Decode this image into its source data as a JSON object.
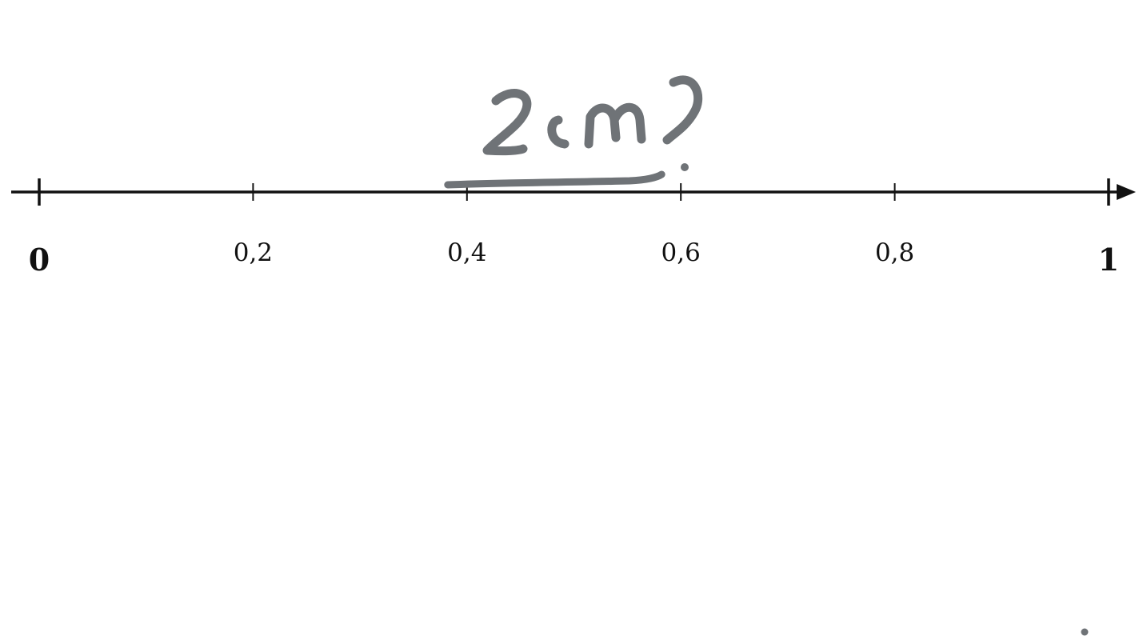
{
  "number_line": {
    "ticks": [
      {
        "value": 0,
        "label": "0",
        "major": true
      },
      {
        "value": 0.2,
        "label": "0,2",
        "major": false
      },
      {
        "value": 0.4,
        "label": "0,4",
        "major": false
      },
      {
        "value": 0.6,
        "label": "0,6",
        "major": false
      },
      {
        "value": 0.8,
        "label": "0,8",
        "major": false
      },
      {
        "value": 1,
        "label": "1",
        "major": true
      }
    ]
  },
  "annotation": {
    "text": "2cm?",
    "underline_from": 0.4,
    "underline_to": 0.6,
    "color": "#6f7377"
  }
}
